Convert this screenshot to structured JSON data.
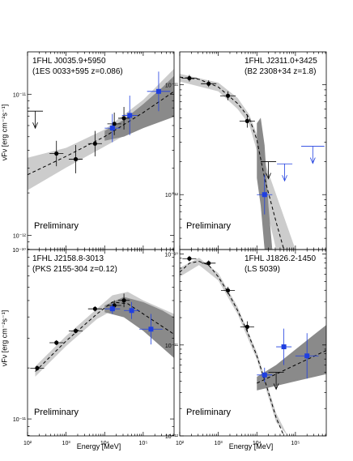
{
  "figure": {
    "y_axis_label": "νFν [erg cm⁻²s⁻¹]",
    "x_axis_label": "Energy [MeV]",
    "x_ticks": [
      "10²",
      "10³",
      "10⁴",
      "10⁵"
    ],
    "watermark": "Preliminary"
  },
  "colors": {
    "lat_points": "#000000",
    "other_points": "#1f3fe0",
    "band_light": "#cccccc",
    "band_dark": "#8a8a8a"
  },
  "chart_data": [
    {
      "type": "scatter",
      "title": "1FHL J0035.9+5950",
      "subtitle": "(1ES 0033+595 z=0.086)",
      "xlabel": "",
      "ylabel": "νFν [erg cm⁻²s⁻¹]",
      "xlim_log10": [
        2.0,
        5.8
      ],
      "ylim_log10": [
        -12.1,
        -10.7
      ],
      "y_ticks": [
        "10⁻¹¹",
        "10⁻¹²"
      ],
      "y_tick_values": [
        -11,
        -12
      ],
      "series": [
        {
          "name": "",
          "color": "black",
          "points": [
            {
              "x": 2.75,
              "y": -11.42,
              "xerr": 0.18,
              "yerr": 0.09
            },
            {
              "x": 3.25,
              "y": -11.46,
              "xerr": 0.18,
              "yerr": 0.1
            },
            {
              "x": 3.75,
              "y": -11.35,
              "xerr": 0.18,
              "yerr": 0.09
            },
            {
              "x": 4.25,
              "y": -11.21,
              "xerr": 0.18,
              "yerr": 0.08
            },
            {
              "x": 4.5,
              "y": -11.17,
              "xerr": 0.15,
              "yerr": 0.08
            }
          ]
        },
        {
          "name": "",
          "color": "blue",
          "points": [
            {
              "x": 4.2,
              "y": -11.24,
              "xerr": 0.2,
              "yerr": 0.1
            },
            {
              "x": 4.65,
              "y": -11.15,
              "xerr": 0.2,
              "yerr": 0.14
            },
            {
              "x": 5.4,
              "y": -10.98,
              "xerr": 0.3,
              "yerr": 0.14
            }
          ]
        }
      ],
      "upper_limits": [
        {
          "x": 2.2,
          "y": -11.12,
          "xerr": 0.2,
          "color": "black"
        }
      ],
      "model_curve": [
        [
          2.0,
          -11.57
        ],
        [
          3.0,
          -11.44
        ],
        [
          4.0,
          -11.3
        ],
        [
          5.0,
          -11.13
        ],
        [
          5.8,
          -10.98
        ]
      ],
      "band_light": {
        "x": [
          2.0,
          3.0,
          4.0,
          5.0,
          5.8
        ],
        "upper": [
          -11.45,
          -11.38,
          -11.25,
          -11.04,
          -10.82
        ],
        "lower": [
          -11.68,
          -11.52,
          -11.37,
          -11.22,
          -11.14
        ]
      },
      "band_dark": {
        "x": [
          4.0,
          4.5,
          5.0,
          5.5,
          5.8
        ],
        "upper": [
          -11.26,
          -11.18,
          -11.07,
          -10.95,
          -10.87
        ],
        "lower": [
          -11.33,
          -11.3,
          -11.24,
          -11.19,
          -11.16
        ]
      },
      "watermark": "Preliminary"
    },
    {
      "type": "scatter",
      "title": "1FHL J2311.0+3425",
      "subtitle": "(B2 2308+34 z=1.8)",
      "xlabel": "",
      "ylabel": "",
      "xlim_log10": [
        2.0,
        5.8
      ],
      "ylim_log10": [
        -12.5,
        -10.7
      ],
      "y_ticks": [
        "10⁻¹¹",
        "10⁻¹²"
      ],
      "y_tick_values": [
        -11,
        -12
      ],
      "series": [
        {
          "name": "",
          "color": "black",
          "points": [
            {
              "x": 2.25,
              "y": -10.94,
              "xerr": 0.2,
              "yerr": 0.03
            },
            {
              "x": 2.75,
              "y": -10.99,
              "xerr": 0.2,
              "yerr": 0.03
            },
            {
              "x": 3.25,
              "y": -11.1,
              "xerr": 0.2,
              "yerr": 0.04
            },
            {
              "x": 3.75,
              "y": -11.33,
              "xerr": 0.2,
              "yerr": 0.06
            }
          ]
        },
        {
          "name": "",
          "color": "blue",
          "points": [
            {
              "x": 4.2,
              "y": -12.0,
              "xerr": 0.2,
              "yerr": 0.18
            }
          ]
        }
      ],
      "upper_limits": [
        {
          "x": 4.3,
          "y": -11.7,
          "xerr": 0.2,
          "color": "black"
        },
        {
          "x": 4.72,
          "y": -11.72,
          "xerr": 0.2,
          "color": "blue"
        },
        {
          "x": 5.45,
          "y": -11.56,
          "xerr": 0.3,
          "color": "blue"
        }
      ],
      "model_curve": [
        [
          2.0,
          -10.93
        ],
        [
          2.5,
          -10.95
        ],
        [
          3.0,
          -11.02
        ],
        [
          3.5,
          -11.17
        ],
        [
          3.8,
          -11.3
        ],
        [
          4.0,
          -11.5
        ],
        [
          4.2,
          -11.85
        ],
        [
          4.5,
          -12.25
        ],
        [
          4.7,
          -12.5
        ]
      ],
      "band_light": {
        "x": [
          2.0,
          3.0,
          3.5,
          3.8,
          4.0,
          4.2,
          4.5,
          5.0
        ],
        "upper": [
          -10.9,
          -10.98,
          -11.12,
          -11.27,
          -11.45,
          -11.7,
          -12.0,
          -12.5
        ],
        "lower": [
          -10.97,
          -11.06,
          -11.22,
          -11.36,
          -11.6,
          -12.05,
          -12.5,
          -12.5
        ]
      },
      "band_dark": {
        "x": [
          4.0,
          4.1,
          4.2,
          4.3,
          4.4
        ],
        "upper": [
          -11.35,
          -11.3,
          -11.55,
          -12.1,
          -12.5
        ],
        "lower": [
          -11.85,
          -12.1,
          -12.5,
          -12.5,
          -12.5
        ]
      },
      "watermark": "Preliminary"
    },
    {
      "type": "scatter",
      "title": "1FHL J2158.8-3013",
      "subtitle": "(PKS 2155-304 z=0.12)",
      "xlabel": "Energy [MeV]",
      "ylabel": "νFν [erg cm⁻²s⁻¹]",
      "xlim_log10": [
        2.0,
        5.8
      ],
      "ylim_log10": [
        -11.1,
        -10.0
      ],
      "y_ticks": [
        "10⁻¹⁰",
        "10⁻¹¹"
      ],
      "y_tick_values": [
        -10,
        -11
      ],
      "x_ticks": [
        "10²",
        "10³",
        "10⁴",
        "10⁵"
      ],
      "x_tick_values": [
        2,
        3,
        4,
        5
      ],
      "series": [
        {
          "name": "",
          "color": "black",
          "points": [
            {
              "x": 2.25,
              "y": -10.7,
              "xerr": 0.18,
              "yerr": 0.015
            },
            {
              "x": 2.75,
              "y": -10.55,
              "xerr": 0.18,
              "yerr": 0.015
            },
            {
              "x": 3.25,
              "y": -10.48,
              "xerr": 0.18,
              "yerr": 0.015
            },
            {
              "x": 3.75,
              "y": -10.35,
              "xerr": 0.18,
              "yerr": 0.015
            },
            {
              "x": 4.25,
              "y": -10.33,
              "xerr": 0.18,
              "yerr": 0.03
            },
            {
              "x": 4.5,
              "y": -10.3,
              "xerr": 0.15,
              "yerr": 0.04
            }
          ]
        },
        {
          "name": "",
          "color": "blue",
          "points": [
            {
              "x": 4.2,
              "y": -10.35,
              "xerr": 0.2,
              "yerr": 0.03
            },
            {
              "x": 4.7,
              "y": -10.36,
              "xerr": 0.2,
              "yerr": 0.05
            },
            {
              "x": 5.2,
              "y": -10.47,
              "xerr": 0.3,
              "yerr": 0.09
            }
          ]
        }
      ],
      "upper_limits": [],
      "model_curve": [
        [
          2.2,
          -10.72
        ],
        [
          2.6,
          -10.63
        ],
        [
          3.0,
          -10.54
        ],
        [
          3.4,
          -10.46
        ],
        [
          3.8,
          -10.38
        ],
        [
          4.2,
          -10.31
        ],
        [
          4.6,
          -10.32
        ],
        [
          5.0,
          -10.38
        ],
        [
          5.8,
          -10.5
        ]
      ],
      "band_light": {
        "x": [
          2.2,
          3.0,
          3.8,
          4.2,
          4.6,
          5.0,
          5.8
        ],
        "upper": [
          -10.69,
          -10.51,
          -10.35,
          -10.27,
          -10.25,
          -10.3,
          -10.38
        ],
        "lower": [
          -10.75,
          -10.57,
          -10.41,
          -10.36,
          -10.37,
          -10.45,
          -10.62
        ]
      },
      "band_dark": {
        "x": [
          4.0,
          4.5,
          5.0,
          5.5,
          5.8
        ],
        "upper": [
          -10.33,
          -10.28,
          -10.31,
          -10.36,
          -10.4
        ],
        "lower": [
          -10.37,
          -10.4,
          -10.48,
          -10.58,
          -10.64
        ]
      },
      "watermark": "Preliminary"
    },
    {
      "type": "scatter",
      "title": "1FHL J1826.2-1450",
      "subtitle": "(LS 5039)",
      "xlabel": "Energy [MeV]",
      "ylabel": "",
      "xlim_log10": [
        2.0,
        5.8
      ],
      "ylim_log10": [
        -12.0,
        -9.95
      ],
      "y_ticks": [
        "10⁻¹⁰",
        "10⁻¹¹",
        "10⁻¹²"
      ],
      "y_tick_values": [
        -10,
        -11,
        -12
      ],
      "x_ticks": [
        "10²",
        "10³",
        "10⁴",
        "10⁵"
      ],
      "x_tick_values": [
        2,
        3,
        4,
        5
      ],
      "series": [
        {
          "name": "",
          "color": "black",
          "points": [
            {
              "x": 2.25,
              "y": -10.05,
              "xerr": 0.18,
              "yerr": 0.03
            },
            {
              "x": 2.75,
              "y": -10.1,
              "xerr": 0.18,
              "yerr": 0.03
            },
            {
              "x": 3.25,
              "y": -10.4,
              "xerr": 0.18,
              "yerr": 0.04
            },
            {
              "x": 3.75,
              "y": -10.8,
              "xerr": 0.18,
              "yerr": 0.06
            }
          ]
        },
        {
          "name": "",
          "color": "blue",
          "points": [
            {
              "x": 4.2,
              "y": -11.33,
              "xerr": 0.2,
              "yerr": 0.08
            },
            {
              "x": 4.7,
              "y": -11.02,
              "xerr": 0.2,
              "yerr": 0.2
            },
            {
              "x": 5.3,
              "y": -11.12,
              "xerr": 0.3,
              "yerr": 0.25
            }
          ]
        }
      ],
      "upper_limits": [
        {
          "x": 4.5,
          "y": -11.3,
          "xerr": 0.2,
          "color": "black"
        }
      ],
      "model_curve": [
        [
          2.0,
          -10.2
        ],
        [
          2.25,
          -10.1
        ],
        [
          2.5,
          -10.08
        ],
        [
          2.75,
          -10.12
        ],
        [
          3.0,
          -10.25
        ],
        [
          3.25,
          -10.42
        ],
        [
          3.5,
          -10.62
        ],
        [
          3.75,
          -10.85
        ],
        [
          4.0,
          -11.12
        ],
        [
          4.25,
          -11.45
        ],
        [
          4.5,
          -11.8
        ],
        [
          4.7,
          -12.0
        ]
      ],
      "model_curve_2": [
        [
          4.0,
          -11.42
        ],
        [
          4.5,
          -11.32
        ],
        [
          5.0,
          -11.22
        ],
        [
          5.5,
          -11.12
        ],
        [
          5.8,
          -11.06
        ]
      ],
      "band_light": {
        "x": [
          2.0,
          2.5,
          3.0,
          3.5,
          4.0,
          4.5,
          4.8
        ],
        "upper": [
          -10.15,
          -10.04,
          -10.21,
          -10.58,
          -11.08,
          -11.75,
          -12.0
        ],
        "lower": [
          -10.25,
          -10.12,
          -10.29,
          -10.66,
          -11.16,
          -11.85,
          -12.0
        ]
      },
      "band_dark": {
        "x": [
          4.0,
          4.5,
          5.0,
          5.5,
          5.8
        ],
        "upper": [
          -11.35,
          -11.22,
          -11.05,
          -10.88,
          -10.78
        ],
        "lower": [
          -11.5,
          -11.45,
          -11.4,
          -11.35,
          -11.32
        ]
      },
      "watermark": "Preliminary"
    }
  ]
}
